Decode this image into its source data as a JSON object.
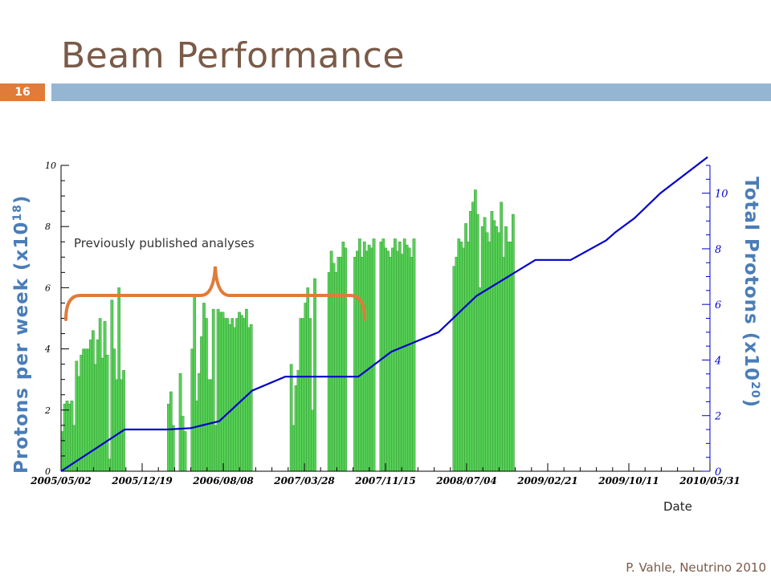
{
  "slide": {
    "title": "Beam Performance",
    "page_number": "16",
    "footer": "P. Vahle, Neutrino 2010"
  },
  "colors": {
    "bar_fill": "#55d055",
    "line": "#0000cc",
    "brace": "#e07b39",
    "title": "#7a5a48",
    "title_bar": "#94b6d2",
    "page_badge": "#e07b39"
  },
  "chart_data": {
    "type": "bar",
    "title": "",
    "xlabel": "Date",
    "ylabel": "Protons per week (x10",
    "ylabel_exp": "18",
    "ylabel_close": ")",
    "y2label": "Total Protons (x10",
    "y2label_exp": "20",
    "y2label_close": ")",
    "annotation": "Previously published analyses",
    "xtick_labels": [
      "2005/05/02",
      "2005/12/19",
      "2006/08/08",
      "2007/03/28",
      "2007/11/15",
      "2008/07/04",
      "2009/02/21",
      "2009/10/11",
      "2010/05/31"
    ],
    "ylim": [
      0,
      10
    ],
    "y2lim": [
      0,
      11
    ],
    "yticks": [
      0,
      2,
      4,
      6,
      8,
      10
    ],
    "y2ticks": [
      0,
      2,
      4,
      6,
      8,
      10
    ],
    "grid": false,
    "x_unit": "week",
    "x_start": "2005/05/02",
    "series": [
      {
        "name": "Protons per week",
        "kind": "bar",
        "values": [
          1.3,
          2.2,
          2.3,
          2.2,
          2.3,
          1.5,
          3.6,
          3.1,
          3.8,
          4.0,
          4.0,
          4.0,
          4.3,
          4.6,
          3.5,
          4.3,
          5.0,
          3.7,
          4.9,
          3.8,
          0.4,
          5.6,
          4.0,
          3.0,
          6.0,
          3.0,
          3.3,
          0,
          0,
          0,
          0,
          0,
          0,
          0,
          0,
          0,
          0,
          0,
          0,
          0,
          0,
          0,
          0,
          0,
          0,
          2.2,
          2.6,
          1.5,
          0,
          0,
          3.2,
          1.8,
          1.3,
          0,
          0,
          4.0,
          5.7,
          2.3,
          3.2,
          4.4,
          5.5,
          5.0,
          3.0,
          3.0,
          5.3,
          1.5,
          5.3,
          5.2,
          5.2,
          5.0,
          5.0,
          4.8,
          5.0,
          4.7,
          5.0,
          5.2,
          5.1,
          5.0,
          5.3,
          4.7,
          4.8,
          0,
          0,
          0,
          0,
          0,
          0,
          0,
          0,
          0,
          0,
          0,
          0,
          0,
          0,
          0,
          0,
          3.5,
          1.5,
          2.8,
          3.3,
          5.0,
          5.0,
          5.5,
          6.0,
          5.0,
          2.0,
          6.3,
          0,
          0,
          0,
          0,
          0,
          6.5,
          7.2,
          6.8,
          6.5,
          7.0,
          7.0,
          7.5,
          7.3,
          0,
          0,
          0,
          7.0,
          7.2,
          7.6,
          7.0,
          7.5,
          7.2,
          7.4,
          7.3,
          7.6,
          0,
          0,
          7.5,
          7.6,
          7.3,
          7.2,
          7.0,
          7.3,
          7.6,
          7.2,
          7.5,
          7.1,
          7.6,
          7.4,
          7.3,
          7.0,
          7.6,
          0,
          0,
          0,
          0,
          0,
          0,
          0,
          0,
          0,
          0,
          0,
          0,
          0,
          0,
          0,
          0,
          6.7,
          7.0,
          7.6,
          7.5,
          7.3,
          8.1,
          7.5,
          8.5,
          8.8,
          9.2,
          8.4,
          6.0,
          8.0,
          8.3,
          7.8,
          7.5,
          8.5,
          8.2,
          8.0,
          7.8,
          8.8,
          7.0,
          8.0,
          7.5,
          7.5,
          8.4
        ]
      },
      {
        "name": "Total Protons",
        "kind": "line",
        "x_weeks": [
          0,
          27,
          45,
          55,
          67,
          81,
          95,
          126,
          140,
          160,
          176,
          201,
          216,
          231,
          235,
          243,
          254,
          274
        ],
        "values": [
          0,
          1.5,
          1.5,
          1.55,
          1.8,
          2.9,
          3.4,
          3.4,
          4.3,
          5.0,
          6.3,
          7.6,
          7.6,
          8.3,
          8.6,
          9.1,
          10.0,
          11.3
        ]
      }
    ]
  }
}
